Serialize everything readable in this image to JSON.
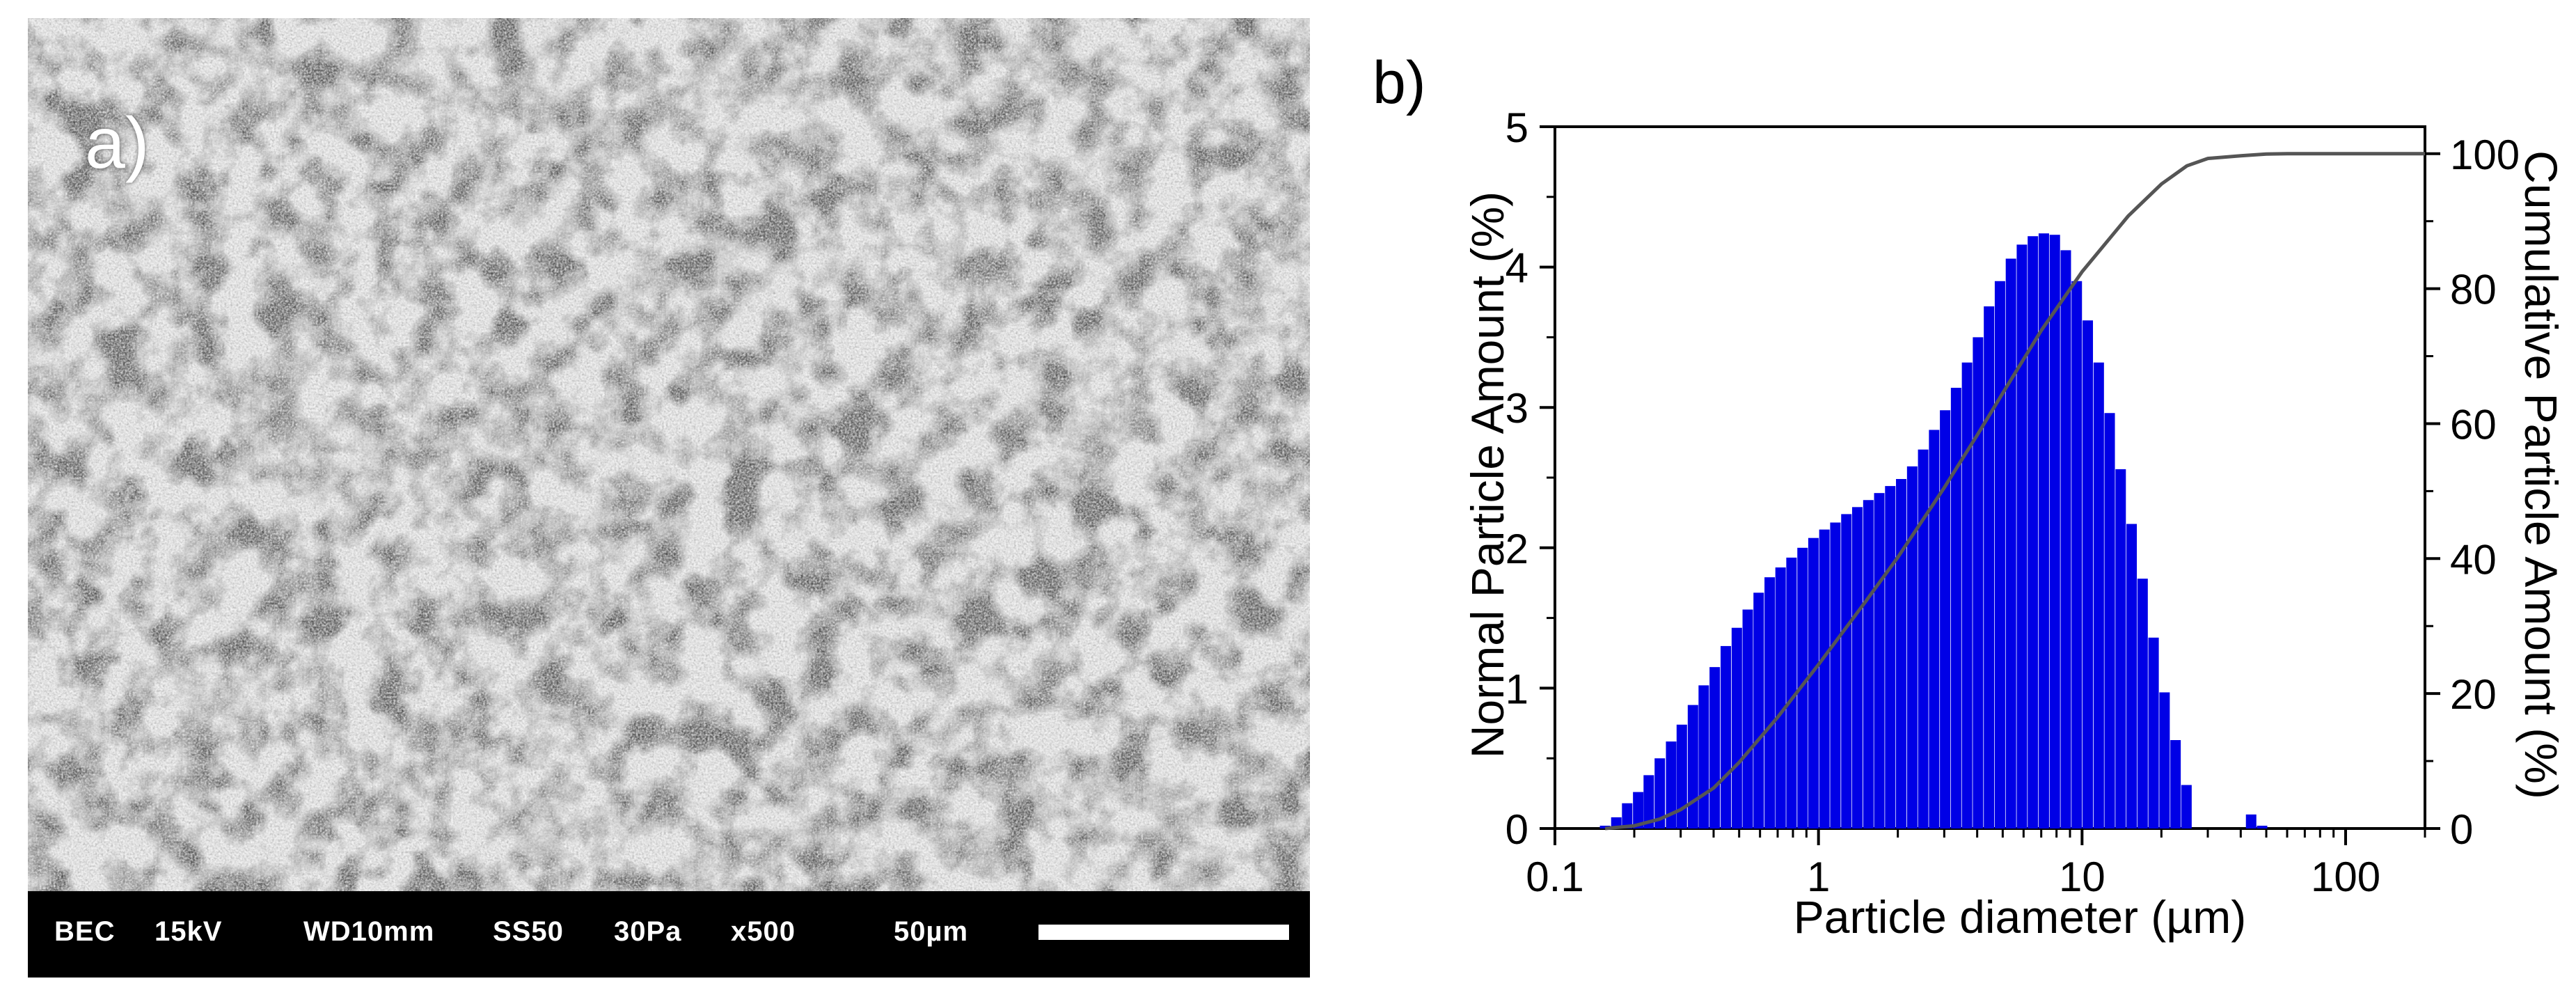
{
  "panel_a": {
    "label": "a)",
    "databar": {
      "detector": "BEC",
      "voltage": "15kV",
      "working_distance": "WD10mm",
      "spot_size": "SS50",
      "pressure": "30Pa",
      "magnification": "x500",
      "scale_label": "50µm"
    }
  },
  "panel_b": {
    "label": "b)"
  },
  "chart_data": {
    "type": "bar",
    "xscale": "log",
    "xlabel": "Particle diameter (µm)",
    "ylabel": "Normal Particle Amount (%)",
    "y2label": "Cumulative Particle Amount (%)",
    "xlim": [
      0.1,
      200
    ],
    "ylim": [
      0,
      5
    ],
    "y2lim": [
      0,
      104
    ],
    "xticks": [
      0.1,
      1,
      10,
      100
    ],
    "xtick_labels": [
      "0.1",
      "1",
      "10",
      "100"
    ],
    "yticks": [
      0,
      1,
      2,
      3,
      4,
      5
    ],
    "y2ticks": [
      0,
      20,
      40,
      60,
      80,
      100
    ],
    "bar_color": "#0000e6",
    "line_color": "#555555",
    "series": [
      {
        "type": "bar",
        "x": [
          0.155,
          0.171,
          0.188,
          0.207,
          0.227,
          0.25,
          0.276,
          0.303,
          0.334,
          0.367,
          0.404,
          0.445,
          0.49,
          0.539,
          0.593,
          0.653,
          0.718,
          0.79,
          0.87,
          0.957,
          1.053,
          1.159,
          1.276,
          1.404,
          1.546,
          1.701,
          1.872,
          2.06,
          2.268,
          2.496,
          2.747,
          3.023,
          3.327,
          3.662,
          4.03,
          4.436,
          4.882,
          5.373,
          5.913,
          6.508,
          7.162,
          7.883,
          8.676,
          9.548,
          10.51,
          11.57,
          12.73,
          14.01,
          15.42,
          16.97,
          18.68,
          20.56,
          22.63,
          24.9,
          27.41,
          30.17,
          33.2,
          43.8,
          48.2
        ],
        "values": [
          0.02,
          0.08,
          0.18,
          0.26,
          0.38,
          0.5,
          0.62,
          0.74,
          0.88,
          1.02,
          1.15,
          1.3,
          1.43,
          1.56,
          1.68,
          1.79,
          1.86,
          1.93,
          2.0,
          2.07,
          2.13,
          2.18,
          2.24,
          2.29,
          2.34,
          2.39,
          2.44,
          2.49,
          2.58,
          2.7,
          2.84,
          2.98,
          3.14,
          3.32,
          3.5,
          3.72,
          3.9,
          4.06,
          4.16,
          4.22,
          4.24,
          4.23,
          4.12,
          3.9,
          3.62,
          3.32,
          2.96,
          2.56,
          2.17,
          1.78,
          1.36,
          0.97,
          0.63,
          0.31,
          0.0,
          0.0,
          0.0,
          0.1,
          0.02
        ]
      },
      {
        "type": "line",
        "name": "Cumulative",
        "axis": "right",
        "x": [
          0.155,
          0.2,
          0.25,
          0.3,
          0.4,
          0.5,
          0.7,
          1.0,
          1.5,
          2.0,
          3.0,
          4.0,
          5.0,
          7.0,
          10.0,
          15.0,
          20.0,
          25.0,
          30.0,
          40.0,
          50.0,
          60.0,
          100.0,
          200.0
        ],
        "values": [
          0,
          0.4,
          1.4,
          2.8,
          6.0,
          9.8,
          16.5,
          24.3,
          33.5,
          40.2,
          50.5,
          58.3,
          64.5,
          73.8,
          82.5,
          90.8,
          95.5,
          98.2,
          99.3,
          99.7,
          99.95,
          100,
          100,
          100
        ]
      }
    ]
  }
}
